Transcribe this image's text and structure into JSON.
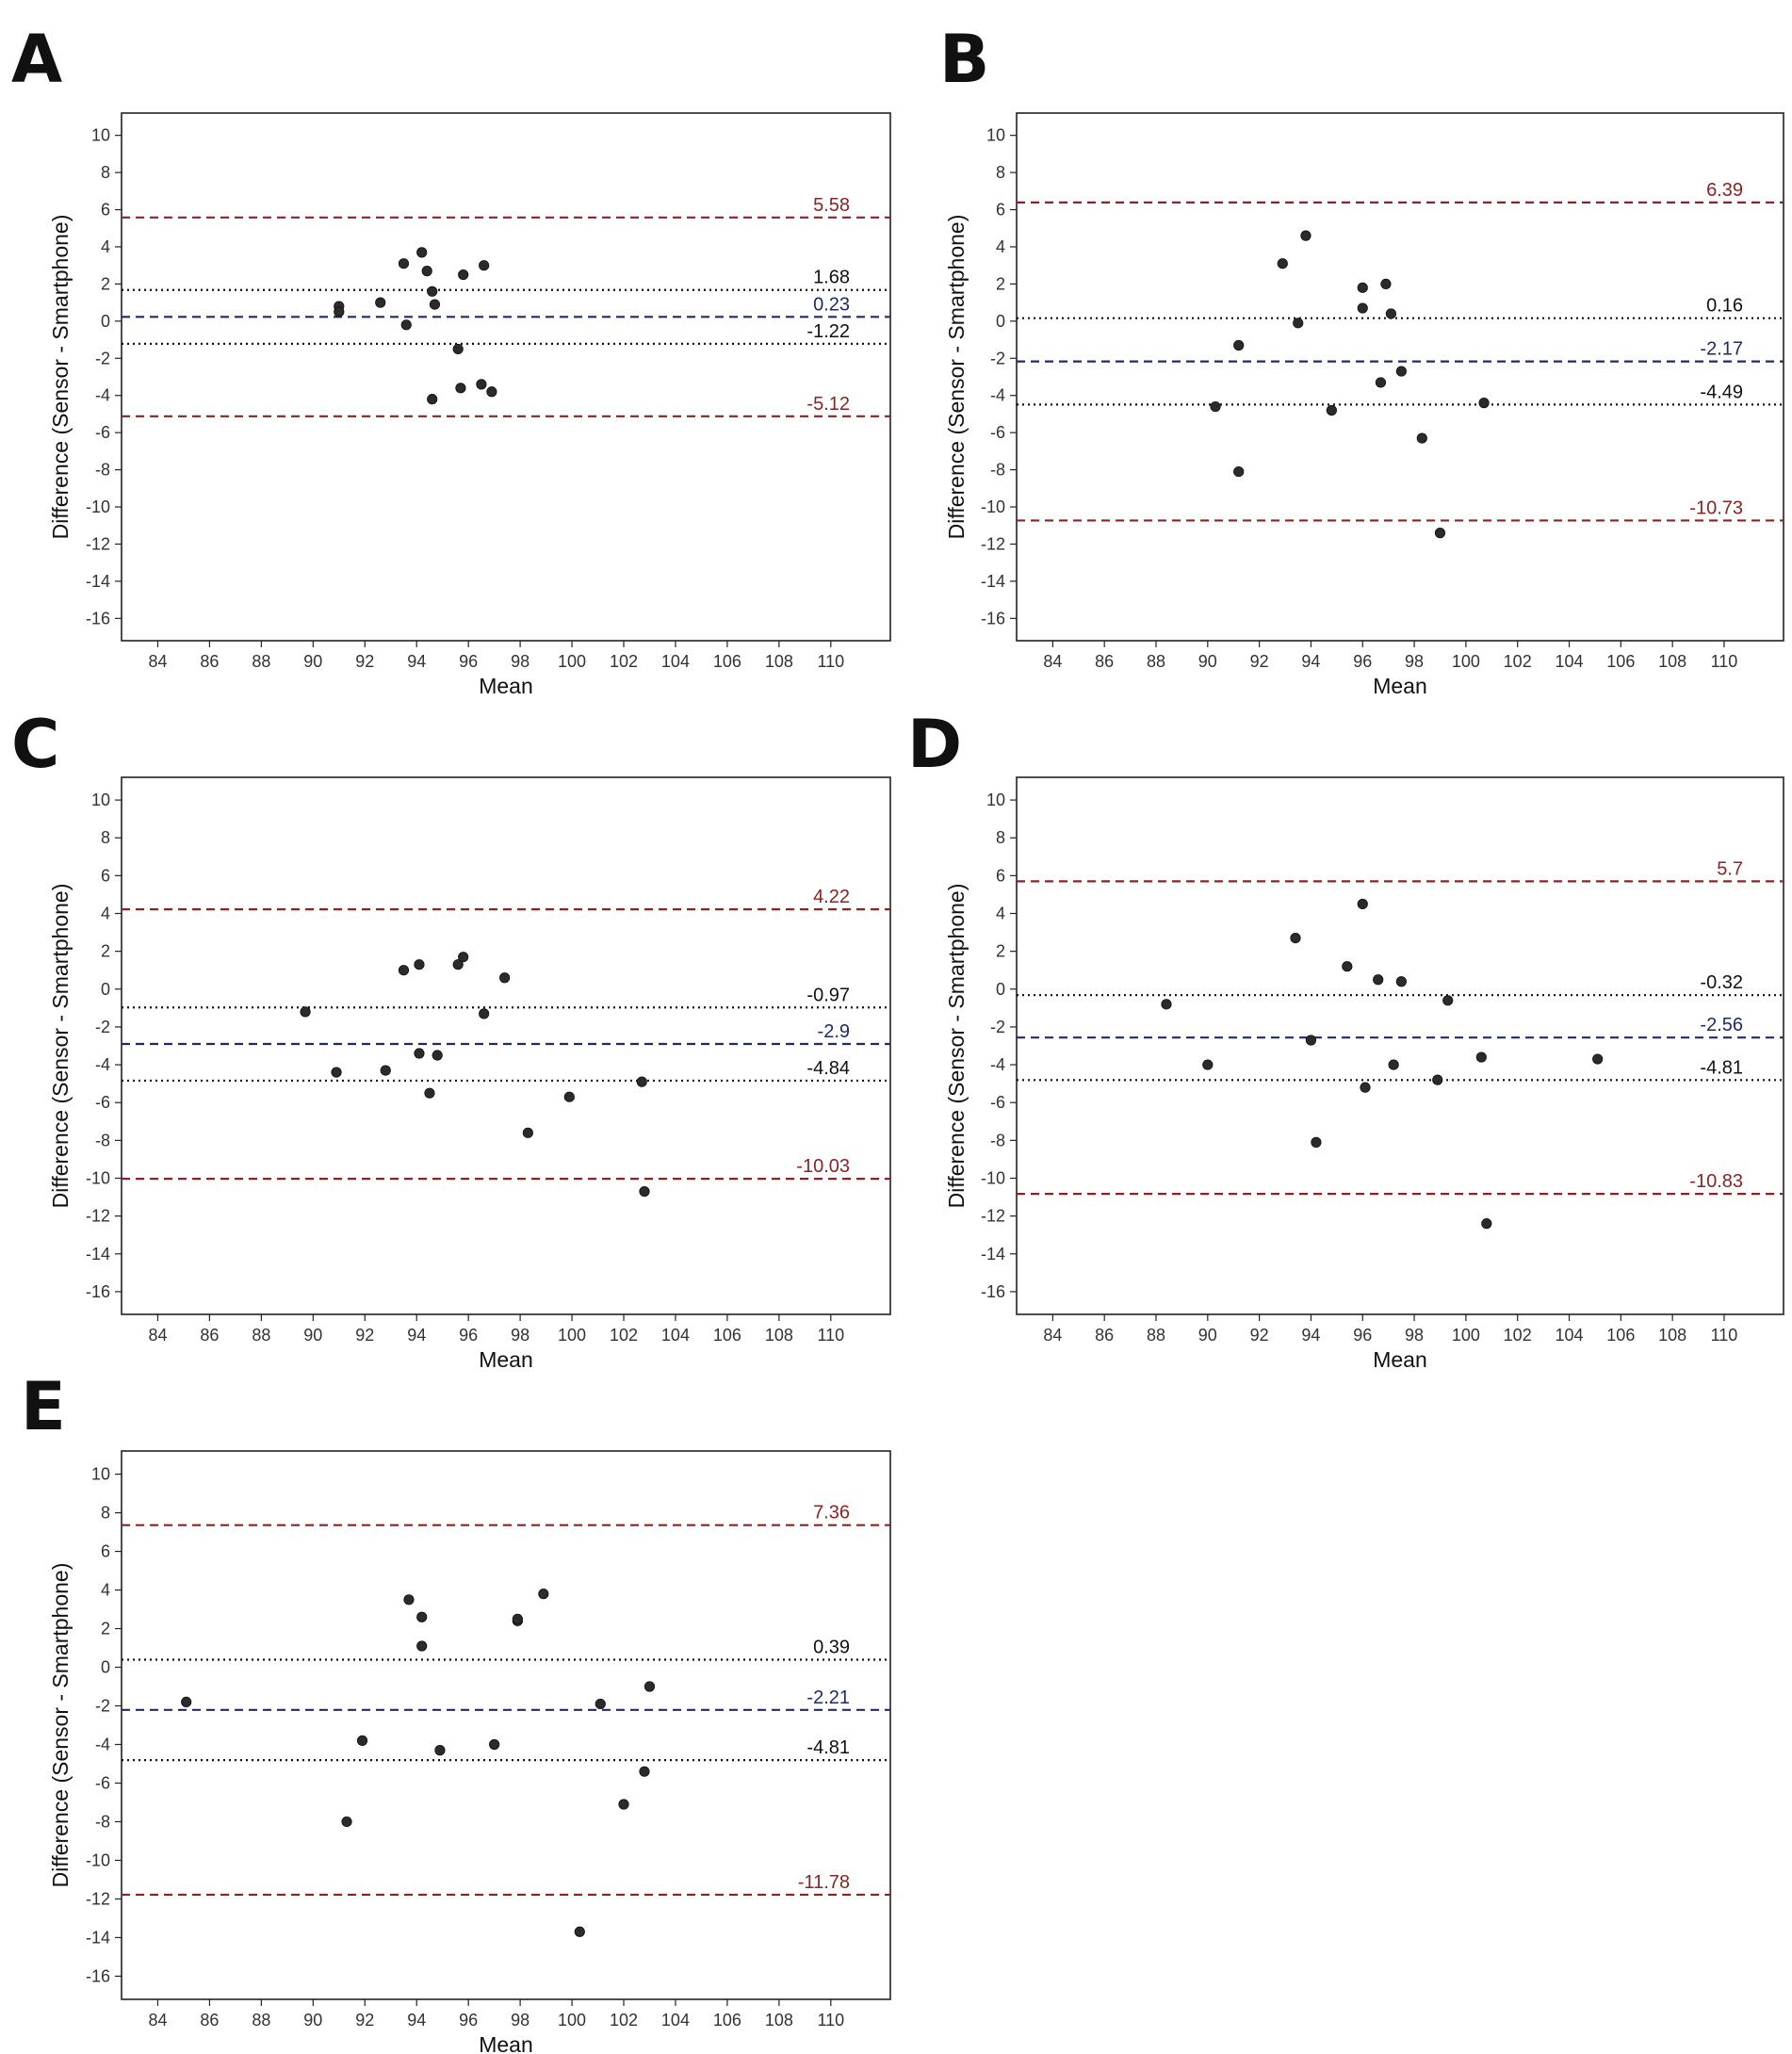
{
  "colors": {
    "loa": "#8b2323",
    "bias": "#1f2a6b",
    "ci": "#111111",
    "point": "#2b2b2b",
    "frame": "#222222"
  },
  "chart_data": [
    {
      "panel": "A",
      "type": "scatter",
      "xlabel": "Mean",
      "ylabel": "Difference (Sensor - Smartphone)",
      "xlim": [
        82.6,
        112.3
      ],
      "ylim": [
        -17.2,
        11.2
      ],
      "xticks": [
        84,
        86,
        88,
        90,
        92,
        94,
        96,
        98,
        100,
        102,
        104,
        106,
        108,
        110
      ],
      "yticks": [
        10,
        8,
        6,
        4,
        2,
        0,
        -2,
        -4,
        -6,
        -8,
        -10,
        -12,
        -14,
        -16
      ],
      "lines": [
        {
          "kind": "loa",
          "value": 5.58,
          "label": "5.58"
        },
        {
          "kind": "ci",
          "value": 1.68,
          "label": "1.68"
        },
        {
          "kind": "bias",
          "value": 0.23,
          "label": "0.23"
        },
        {
          "kind": "ci",
          "value": -1.22,
          "label": "-1.22"
        },
        {
          "kind": "loa",
          "value": -5.12,
          "label": "-5.12"
        }
      ],
      "points": [
        [
          91.0,
          0.8
        ],
        [
          91.0,
          0.5
        ],
        [
          92.6,
          1.0
        ],
        [
          93.5,
          3.1
        ],
        [
          93.6,
          -0.2
        ],
        [
          94.2,
          3.7
        ],
        [
          94.4,
          2.7
        ],
        [
          94.6,
          1.6
        ],
        [
          94.7,
          0.9
        ],
        [
          94.6,
          -4.2
        ],
        [
          95.6,
          -1.5
        ],
        [
          95.7,
          -3.6
        ],
        [
          95.8,
          2.5
        ],
        [
          96.5,
          -3.4
        ],
        [
          96.6,
          3.0
        ],
        [
          96.9,
          -3.8
        ]
      ]
    },
    {
      "panel": "B",
      "type": "scatter",
      "xlabel": "Mean",
      "ylabel": "Difference (Sensor - Smartphone)",
      "xlim": [
        82.6,
        112.3
      ],
      "ylim": [
        -17.2,
        11.2
      ],
      "xticks": [
        84,
        86,
        88,
        90,
        92,
        94,
        96,
        98,
        100,
        102,
        104,
        106,
        108,
        110
      ],
      "yticks": [
        10,
        8,
        6,
        4,
        2,
        0,
        -2,
        -4,
        -6,
        -8,
        -10,
        -12,
        -14,
        -16
      ],
      "lines": [
        {
          "kind": "loa",
          "value": 6.39,
          "label": "6.39"
        },
        {
          "kind": "ci",
          "value": 0.16,
          "label": "0.16"
        },
        {
          "kind": "bias",
          "value": -2.17,
          "label": "-2.17"
        },
        {
          "kind": "ci",
          "value": -4.49,
          "label": "-4.49"
        },
        {
          "kind": "loa",
          "value": -10.73,
          "label": "-10.73"
        }
      ],
      "points": [
        [
          90.3,
          -4.6
        ],
        [
          91.2,
          -1.3
        ],
        [
          91.2,
          -8.1
        ],
        [
          92.9,
          3.1
        ],
        [
          93.5,
          -0.1
        ],
        [
          93.8,
          4.6
        ],
        [
          94.8,
          -4.8
        ],
        [
          96.0,
          1.8
        ],
        [
          96.0,
          0.7
        ],
        [
          96.7,
          -3.3
        ],
        [
          96.9,
          2.0
        ],
        [
          97.1,
          0.4
        ],
        [
          97.5,
          -2.7
        ],
        [
          98.3,
          -6.3
        ],
        [
          99.0,
          -11.4
        ],
        [
          100.7,
          -4.4
        ]
      ]
    },
    {
      "panel": "C",
      "type": "scatter",
      "xlabel": "Mean",
      "ylabel": "Difference (Sensor - Smartphone)",
      "xlim": [
        82.6,
        112.3
      ],
      "ylim": [
        -17.2,
        11.2
      ],
      "xticks": [
        84,
        86,
        88,
        90,
        92,
        94,
        96,
        98,
        100,
        102,
        104,
        106,
        108,
        110
      ],
      "yticks": [
        10,
        8,
        6,
        4,
        2,
        0,
        -2,
        -4,
        -6,
        -8,
        -10,
        -12,
        -14,
        -16
      ],
      "lines": [
        {
          "kind": "loa",
          "value": 4.22,
          "label": "4.22"
        },
        {
          "kind": "ci",
          "value": -0.97,
          "label": "-0.97"
        },
        {
          "kind": "bias",
          "value": -2.9,
          "label": "-2.9"
        },
        {
          "kind": "ci",
          "value": -4.84,
          "label": "-4.84"
        },
        {
          "kind": "loa",
          "value": -10.03,
          "label": "-10.03"
        }
      ],
      "points": [
        [
          89.7,
          -1.2
        ],
        [
          90.9,
          -4.4
        ],
        [
          92.8,
          -4.3
        ],
        [
          93.5,
          1.0
        ],
        [
          94.1,
          1.3
        ],
        [
          94.1,
          -3.4
        ],
        [
          94.5,
          -5.5
        ],
        [
          94.8,
          -3.5
        ],
        [
          95.6,
          1.3
        ],
        [
          95.8,
          1.7
        ],
        [
          96.6,
          -1.3
        ],
        [
          97.4,
          0.6
        ],
        [
          98.3,
          -7.6
        ],
        [
          99.9,
          -5.7
        ],
        [
          102.7,
          -4.9
        ],
        [
          102.8,
          -10.7
        ]
      ]
    },
    {
      "panel": "D",
      "type": "scatter",
      "xlabel": "Mean",
      "ylabel": "Difference (Sensor - Smartphone)",
      "xlim": [
        82.6,
        112.3
      ],
      "ylim": [
        -17.2,
        11.2
      ],
      "xticks": [
        84,
        86,
        88,
        90,
        92,
        94,
        96,
        98,
        100,
        102,
        104,
        106,
        108,
        110
      ],
      "yticks": [
        10,
        8,
        6,
        4,
        2,
        0,
        -2,
        -4,
        -6,
        -8,
        -10,
        -12,
        -14,
        -16
      ],
      "lines": [
        {
          "kind": "loa",
          "value": 5.7,
          "label": "5.7"
        },
        {
          "kind": "ci",
          "value": -0.32,
          "label": "-0.32"
        },
        {
          "kind": "bias",
          "value": -2.56,
          "label": "-2.56"
        },
        {
          "kind": "ci",
          "value": -4.81,
          "label": "-4.81"
        },
        {
          "kind": "loa",
          "value": -10.83,
          "label": "-10.83"
        }
      ],
      "points": [
        [
          88.4,
          -0.8
        ],
        [
          90.0,
          -4.0
        ],
        [
          93.4,
          2.7
        ],
        [
          94.0,
          -2.7
        ],
        [
          94.2,
          -8.1
        ],
        [
          95.4,
          1.2
        ],
        [
          96.0,
          4.5
        ],
        [
          96.1,
          -5.2
        ],
        [
          96.6,
          0.5
        ],
        [
          97.2,
          -4.0
        ],
        [
          97.5,
          0.4
        ],
        [
          98.9,
          -4.8
        ],
        [
          99.3,
          -0.6
        ],
        [
          100.6,
          -3.6
        ],
        [
          100.8,
          -12.4
        ],
        [
          105.1,
          -3.7
        ]
      ]
    },
    {
      "panel": "E",
      "type": "scatter",
      "xlabel": "Mean",
      "ylabel": "Difference (Sensor - Smartphone)",
      "xlim": [
        82.6,
        112.3
      ],
      "ylim": [
        -17.2,
        11.2
      ],
      "xticks": [
        84,
        86,
        88,
        90,
        92,
        94,
        96,
        98,
        100,
        102,
        104,
        106,
        108,
        110
      ],
      "yticks": [
        10,
        8,
        6,
        4,
        2,
        0,
        -2,
        -4,
        -6,
        -8,
        -10,
        -12,
        -14,
        -16
      ],
      "lines": [
        {
          "kind": "loa",
          "value": 7.36,
          "label": "7.36"
        },
        {
          "kind": "ci",
          "value": 0.39,
          "label": "0.39"
        },
        {
          "kind": "bias",
          "value": -2.21,
          "label": "-2.21"
        },
        {
          "kind": "ci",
          "value": -4.81,
          "label": "-4.81"
        },
        {
          "kind": "loa",
          "value": -11.78,
          "label": "-11.78"
        }
      ],
      "points": [
        [
          85.1,
          -1.8
        ],
        [
          91.3,
          -8.0
        ],
        [
          91.9,
          -3.8
        ],
        [
          93.7,
          3.5
        ],
        [
          94.2,
          2.6
        ],
        [
          94.2,
          1.1
        ],
        [
          94.9,
          -4.3
        ],
        [
          97.0,
          -4.0
        ],
        [
          97.9,
          2.4
        ],
        [
          97.9,
          2.5
        ],
        [
          98.9,
          3.8
        ],
        [
          100.3,
          -13.7
        ],
        [
          101.1,
          -1.9
        ],
        [
          102.0,
          -7.1
        ],
        [
          102.8,
          -5.4
        ],
        [
          103.0,
          -1.0
        ]
      ]
    }
  ]
}
